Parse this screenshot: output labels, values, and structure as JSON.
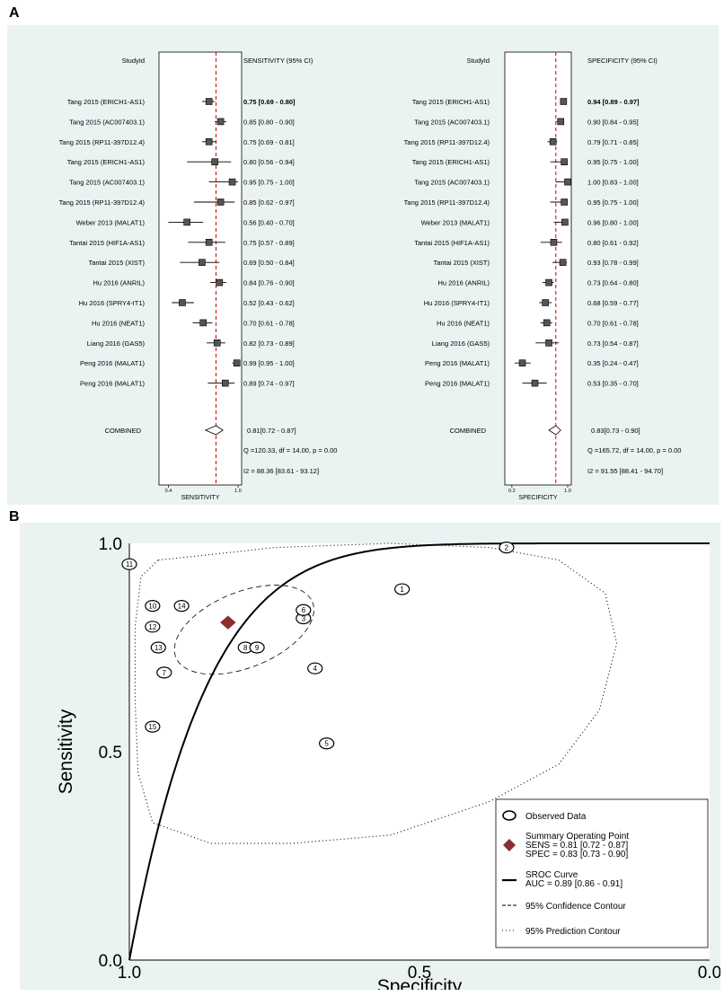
{
  "panel_labels": {
    "a": "A",
    "b": "B"
  },
  "forest": {
    "left": {
      "col_header": "StudyId",
      "stat_header": "SENSITIVITY (95% CI)",
      "axis_label": "SENSITIVITY",
      "ticks": [
        "0.4",
        "1.0"
      ],
      "axis_range": [
        0.35,
        1.0
      ],
      "ref_line": 0.81
    },
    "right": {
      "col_header": "StudyId",
      "stat_header": "SPECIFICITY (95% CI)",
      "axis_label": "SPECIFICITY",
      "ticks": [
        "0.2",
        "1.0"
      ],
      "axis_range": [
        0.15,
        1.0
      ],
      "ref_line": 0.83
    },
    "combined_label": "COMBINED",
    "combined": {
      "sens_text": "0.81[0.72 - 0.87]",
      "spec_text": "0.83[0.73 - 0.90]",
      "sens_q": "Q =120.33, df = 14.00, p = 0.00",
      "spec_q": "Q =165.72, df = 14.00, p = 0.00",
      "sens_i2": "I2 = 88.36 [83.61 - 93.12]",
      "spec_i2": "I2 = 91.55 [88.41 - 94.70]"
    }
  },
  "chart_data": [
    {
      "type": "forest",
      "title": "",
      "measure": "SENSITIVITY",
      "studies": [
        {
          "label": "Tang 2015 (ERICH1-AS1)",
          "est": 0.75,
          "lo": 0.69,
          "hi": 0.8,
          "text": "0.75 [0.69 - 0.80]",
          "bold": true
        },
        {
          "label": "Tang 2015 (AC007403.1)",
          "est": 0.85,
          "lo": 0.8,
          "hi": 0.9,
          "text": "0.85 [0.80 - 0.90]"
        },
        {
          "label": "Tang 2015 (RP11-397D12.4)",
          "est": 0.75,
          "lo": 0.69,
          "hi": 0.81,
          "text": "0.75 [0.69 - 0.81]"
        },
        {
          "label": "Tang 2015 (ERICH1-AS1)",
          "est": 0.8,
          "lo": 0.56,
          "hi": 0.94,
          "text": "0.80 [0.56 - 0.94]"
        },
        {
          "label": "Tang 2015 (AC007403.1)",
          "est": 0.95,
          "lo": 0.75,
          "hi": 1.0,
          "text": "0.95 [0.75 - 1.00]"
        },
        {
          "label": "Tang 2015 (RP11-397D12.4)",
          "est": 0.85,
          "lo": 0.62,
          "hi": 0.97,
          "text": "0.85 [0.62 - 0.97]"
        },
        {
          "label": "Weber 2013 (MALAT1)",
          "est": 0.56,
          "lo": 0.4,
          "hi": 0.7,
          "text": "0.56 [0.40 - 0.70]"
        },
        {
          "label": "Tantai 2015 (HIF1A-AS1)",
          "est": 0.75,
          "lo": 0.57,
          "hi": 0.89,
          "text": "0.75 [0.57 - 0.89]"
        },
        {
          "label": "Tantai 2015 (XIST)",
          "est": 0.69,
          "lo": 0.5,
          "hi": 0.84,
          "text": "0.69 [0.50 - 0.84]"
        },
        {
          "label": "Hu  2016 (ANRIL)",
          "est": 0.84,
          "lo": 0.76,
          "hi": 0.9,
          "text": "0.84 [0.76 - 0.90]"
        },
        {
          "label": "Hu  2016 (SPRY4-IT1)",
          "est": 0.52,
          "lo": 0.43,
          "hi": 0.62,
          "text": "0.52 [0.43 - 0.62]"
        },
        {
          "label": "Hu  2016 (NEAT1)",
          "est": 0.7,
          "lo": 0.61,
          "hi": 0.78,
          "text": "0.70 [0.61 - 0.78]"
        },
        {
          "label": "Liang 2016 (GAS5)",
          "est": 0.82,
          "lo": 0.73,
          "hi": 0.89,
          "text": "0.82 [0.73 - 0.89]"
        },
        {
          "label": "Peng 2016 (MALAT1)",
          "est": 0.99,
          "lo": 0.95,
          "hi": 1.0,
          "text": "0.99 [0.95 - 1.00]"
        },
        {
          "label": "Peng 2016 (MALAT1)",
          "est": 0.89,
          "lo": 0.74,
          "hi": 0.97,
          "text": "0.89 [0.74 - 0.97]"
        }
      ],
      "combined": {
        "est": 0.81,
        "lo": 0.72,
        "hi": 0.87
      }
    },
    {
      "type": "forest",
      "title": "",
      "measure": "SPECIFICITY",
      "studies": [
        {
          "label": "Tang 2015 (ERICH1-AS1)",
          "est": 0.94,
          "lo": 0.89,
          "hi": 0.97,
          "text": "0.94 [0.89 - 0.97]",
          "bold": true
        },
        {
          "label": "Tang 2015 (AC007403.1)",
          "est": 0.9,
          "lo": 0.84,
          "hi": 0.95,
          "text": "0.90 [0.84 - 0.95]"
        },
        {
          "label": "Tang 2015 (RP11-397D12.4)",
          "est": 0.79,
          "lo": 0.71,
          "hi": 0.85,
          "text": "0.79 [0.71 - 0.85]"
        },
        {
          "label": "Tang 2015 (ERICH1-AS1)",
          "est": 0.95,
          "lo": 0.75,
          "hi": 1.0,
          "text": "0.95 [0.75 - 1.00]"
        },
        {
          "label": "Tang 2015 (AC007403.1)",
          "est": 1.0,
          "lo": 0.83,
          "hi": 1.0,
          "text": "1.00 [0.83 - 1.00]"
        },
        {
          "label": "Tang 2015 (RP11-397D12.4)",
          "est": 0.95,
          "lo": 0.75,
          "hi": 1.0,
          "text": "0.95 [0.75 - 1.00]"
        },
        {
          "label": "Weber 2013 (MALAT1)",
          "est": 0.96,
          "lo": 0.8,
          "hi": 1.0,
          "text": "0.96 [0.80 - 1.00]"
        },
        {
          "label": "Tantai 2015 (HIF1A-AS1)",
          "est": 0.8,
          "lo": 0.61,
          "hi": 0.92,
          "text": "0.80 [0.61 - 0.92]"
        },
        {
          "label": "Tantai 2015 (XIST)",
          "est": 0.93,
          "lo": 0.78,
          "hi": 0.99,
          "text": "0.93 [0.78 - 0.99]"
        },
        {
          "label": "Hu  2016 (ANRIL)",
          "est": 0.73,
          "lo": 0.64,
          "hi": 0.8,
          "text": "0.73 [0.64 - 0.80]"
        },
        {
          "label": "Hu  2016 (SPRY4-IT1)",
          "est": 0.68,
          "lo": 0.59,
          "hi": 0.77,
          "text": "0.68 [0.59 - 0.77]"
        },
        {
          "label": "Hu  2016 (NEAT1)",
          "est": 0.7,
          "lo": 0.61,
          "hi": 0.78,
          "text": "0.70 [0.61 - 0.78]"
        },
        {
          "label": "Liang 2016 (GAS5)",
          "est": 0.73,
          "lo": 0.54,
          "hi": 0.87,
          "text": "0.73 [0.54 - 0.87]"
        },
        {
          "label": "Peng 2016 (MALAT1)",
          "est": 0.35,
          "lo": 0.24,
          "hi": 0.47,
          "text": "0.35 [0.24 - 0.47]"
        },
        {
          "label": "Peng 2016 (MALAT1)",
          "est": 0.53,
          "lo": 0.35,
          "hi": 0.7,
          "text": "0.53 [0.35 - 0.70]"
        }
      ],
      "combined": {
        "est": 0.83,
        "lo": 0.73,
        "hi": 0.9
      }
    },
    {
      "type": "scatter",
      "title": "",
      "xlabel": "Specificity",
      "ylabel": "Sensitivity",
      "x_reversed": true,
      "xlim": [
        1.0,
        0.0
      ],
      "ylim": [
        0.0,
        1.0
      ],
      "xticks": [
        "1.0",
        "0.5",
        "0.0"
      ],
      "yticks": [
        "0.0",
        "0.5",
        "1.0"
      ],
      "points": [
        {
          "id": "1",
          "spec": 0.53,
          "sens": 0.89
        },
        {
          "id": "2",
          "spec": 0.35,
          "sens": 0.99
        },
        {
          "id": "3",
          "spec": 0.7,
          "sens": 0.82
        },
        {
          "id": "4",
          "spec": 0.68,
          "sens": 0.7
        },
        {
          "id": "5",
          "spec": 0.66,
          "sens": 0.52
        },
        {
          "id": "6",
          "spec": 0.7,
          "sens": 0.84
        },
        {
          "id": "7",
          "spec": 0.94,
          "sens": 0.69
        },
        {
          "id": "8",
          "spec": 0.8,
          "sens": 0.75
        },
        {
          "id": "9",
          "spec": 0.78,
          "sens": 0.75
        },
        {
          "id": "10",
          "spec": 0.96,
          "sens": 0.85
        },
        {
          "id": "11",
          "spec": 1.0,
          "sens": 0.95
        },
        {
          "id": "12",
          "spec": 0.96,
          "sens": 0.8
        },
        {
          "id": "13",
          "spec": 0.95,
          "sens": 0.75
        },
        {
          "id": "14",
          "spec": 0.91,
          "sens": 0.85
        },
        {
          "id": "15",
          "spec": 0.96,
          "sens": 0.56
        }
      ],
      "summary_point": {
        "spec": 0.83,
        "sens": 0.81
      },
      "legend": {
        "position": "bottom-right",
        "observed": "Observed Data",
        "summary_title": "Summary Operating Point",
        "summary_sens": "SENS = 0.81 [0.72 - 0.87]",
        "summary_spec": "SPEC = 0.83 [0.73 - 0.90]",
        "sroc_title": "SROC Curve",
        "sroc_auc": "AUC = 0.89 [0.86 - 0.91]",
        "confidence": "95% Confidence Contour",
        "prediction": "95% Prediction Contour"
      }
    }
  ],
  "colors": {
    "background": "#eaf2f2",
    "ref_line": "#cc0000",
    "summary_point": "#8b2e2e",
    "ink": "#000000"
  }
}
